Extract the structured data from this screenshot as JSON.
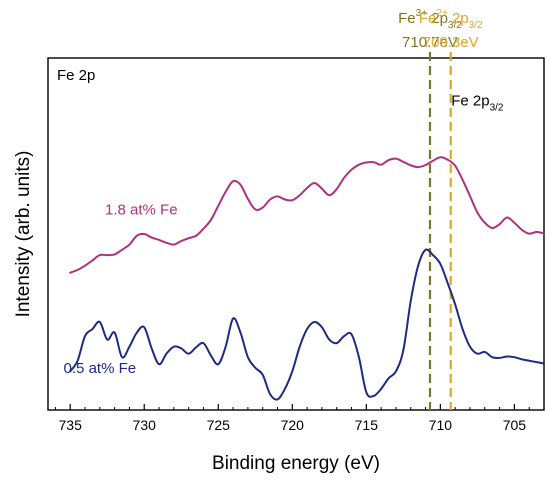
{
  "chart_data": {
    "type": "line",
    "panel_label": "Fe 2p",
    "xlabel": "Binding energy (eV)",
    "ylabel": "Intensity (arb. units)",
    "x_reversed": true,
    "xlim": [
      736.5,
      703
    ],
    "x_ticks": [
      "735",
      "730",
      "725",
      "720",
      "715",
      "710",
      "705"
    ],
    "y_ticks_shown": false,
    "ylim": [
      0,
      1
    ],
    "peak_label": {
      "main": "Fe 2p",
      "sub": "3/2",
      "anchor_x": 707.5,
      "anchor_y": 0.865
    },
    "reference_lines": [
      {
        "x": 710.7,
        "color": "#7A7A22",
        "species": "Fe",
        "charge": "3+",
        "orbital": "2p",
        "orbital_sub": "3/2",
        "energy_label": "710.7eV"
      },
      {
        "x": 709.3,
        "color": "#E2A624",
        "species": "Fe",
        "charge": "2+",
        "orbital": "2p",
        "orbital_sub": "3/2",
        "energy_label": "709.3eV"
      }
    ],
    "series": [
      {
        "name": "1.8 at% Fe",
        "color": "#B0307F",
        "label_anchor": [
          730.2,
          0.555
        ],
        "x": [
          735.0,
          734.5,
          734.0,
          733.5,
          733.0,
          732.5,
          732.0,
          731.5,
          731.0,
          730.5,
          730.0,
          729.5,
          729.0,
          728.5,
          728.0,
          727.5,
          727.0,
          726.5,
          726.0,
          725.5,
          725.0,
          724.5,
          724.0,
          723.5,
          723.0,
          722.5,
          722.0,
          721.5,
          721.0,
          720.5,
          720.0,
          719.5,
          719.0,
          718.5,
          718.0,
          717.5,
          717.0,
          716.5,
          716.0,
          715.5,
          715.0,
          714.5,
          714.0,
          713.5,
          713.0,
          712.5,
          712.0,
          711.5,
          711.0,
          710.5,
          710.0,
          709.5,
          709.0,
          708.5,
          708.0,
          707.5,
          707.0,
          706.5,
          706.0,
          705.5,
          705.0,
          704.5,
          704.0,
          703.5,
          703.0
        ],
        "y": [
          0.39,
          0.398,
          0.41,
          0.425,
          0.44,
          0.44,
          0.442,
          0.455,
          0.47,
          0.495,
          0.5,
          0.49,
          0.483,
          0.475,
          0.47,
          0.48,
          0.488,
          0.495,
          0.515,
          0.54,
          0.58,
          0.62,
          0.65,
          0.64,
          0.6,
          0.57,
          0.575,
          0.598,
          0.607,
          0.598,
          0.596,
          0.61,
          0.631,
          0.645,
          0.629,
          0.61,
          0.628,
          0.66,
          0.683,
          0.697,
          0.703,
          0.704,
          0.697,
          0.71,
          0.714,
          0.705,
          0.695,
          0.69,
          0.696,
          0.708,
          0.718,
          0.711,
          0.694,
          0.654,
          0.608,
          0.561,
          0.532,
          0.517,
          0.528,
          0.547,
          0.532,
          0.512,
          0.501,
          0.506,
          0.501
        ]
      },
      {
        "name": "0.5 at% Fe",
        "color": "#1F2A84",
        "label_anchor": [
          733.0,
          0.105
        ],
        "x": [
          735.0,
          734.5,
          734.0,
          733.5,
          733.0,
          732.5,
          732.0,
          731.5,
          731.0,
          730.5,
          730.0,
          729.5,
          729.0,
          728.5,
          728.0,
          727.5,
          727.0,
          726.5,
          726.0,
          725.5,
          725.0,
          724.5,
          724.0,
          723.5,
          723.0,
          722.5,
          722.0,
          721.5,
          721.0,
          720.5,
          720.0,
          719.5,
          719.0,
          718.5,
          718.0,
          717.5,
          717.0,
          716.5,
          716.0,
          715.5,
          715.0,
          714.5,
          714.0,
          713.5,
          713.0,
          712.5,
          712.0,
          711.5,
          711.0,
          710.5,
          710.0,
          709.5,
          709.0,
          708.5,
          708.0,
          707.5,
          707.0,
          706.5,
          706.0,
          705.5,
          705.0,
          704.5,
          704.0,
          703.5,
          703.0
        ],
        "y": [
          0.11,
          0.14,
          0.21,
          0.23,
          0.25,
          0.2,
          0.22,
          0.15,
          0.18,
          0.22,
          0.235,
          0.175,
          0.13,
          0.16,
          0.18,
          0.175,
          0.16,
          0.178,
          0.19,
          0.155,
          0.13,
          0.18,
          0.26,
          0.22,
          0.15,
          0.12,
          0.1,
          0.045,
          0.03,
          0.06,
          0.11,
          0.18,
          0.23,
          0.25,
          0.235,
          0.2,
          0.19,
          0.21,
          0.215,
          0.15,
          0.05,
          0.04,
          0.06,
          0.09,
          0.11,
          0.17,
          0.31,
          0.41,
          0.455,
          0.44,
          0.415,
          0.36,
          0.3,
          0.23,
          0.18,
          0.16,
          0.165,
          0.15,
          0.148,
          0.152,
          0.15,
          0.144,
          0.14,
          0.136,
          0.132
        ]
      }
    ]
  }
}
